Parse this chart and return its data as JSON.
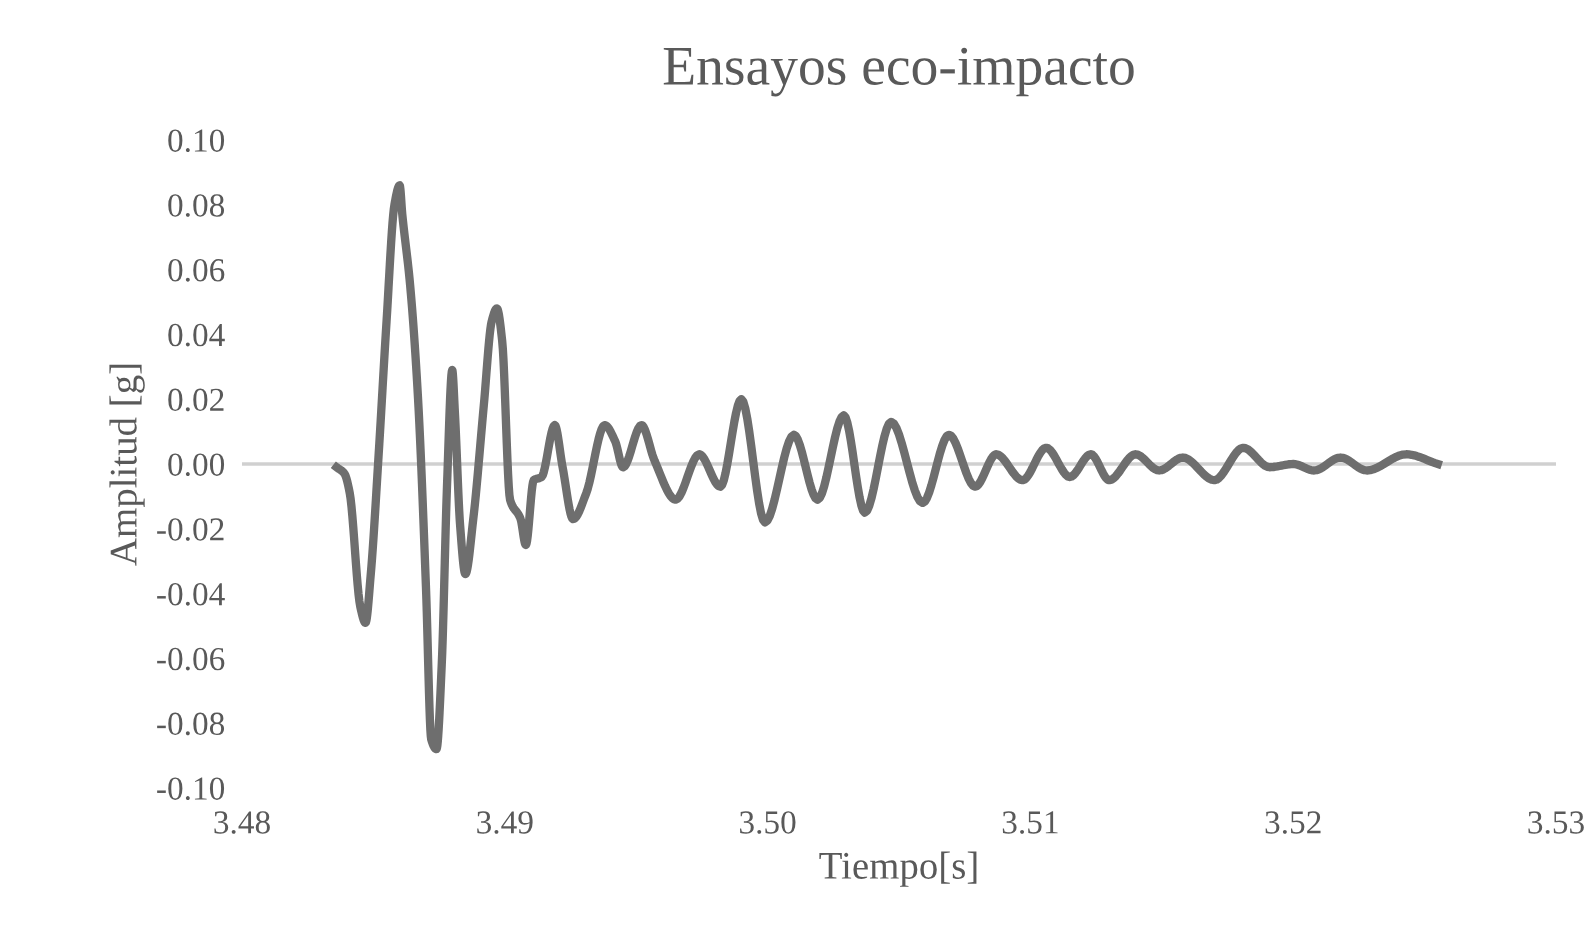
{
  "chart_data": {
    "type": "line",
    "title": "Ensayos eco-impacto",
    "xlabel": "Tiempo[s]",
    "ylabel": "Amplitud [g]",
    "xlim": [
      3.48,
      3.53
    ],
    "xticks": [
      {
        "value": 3.48,
        "label": "3.48"
      },
      {
        "value": 3.49,
        "label": "3.49"
      },
      {
        "value": 3.5,
        "label": "3.50"
      },
      {
        "value": 3.51,
        "label": "3.51"
      },
      {
        "value": 3.52,
        "label": "3.52"
      },
      {
        "value": 3.53,
        "label": "3.53"
      }
    ],
    "ylim": [
      -0.1,
      0.1
    ],
    "yticks": [
      {
        "value": -0.1,
        "label": "-0.10"
      },
      {
        "value": -0.08,
        "label": "-0.08"
      },
      {
        "value": -0.06,
        "label": "-0.06"
      },
      {
        "value": -0.04,
        "label": "-0.04"
      },
      {
        "value": -0.02,
        "label": "-0.02"
      },
      {
        "value": 0,
        "label": "0.00"
      },
      {
        "value": 0.02,
        "label": "0.02"
      },
      {
        "value": 0.04,
        "label": "0.04"
      },
      {
        "value": 0.06,
        "label": "0.06"
      },
      {
        "value": 0.08,
        "label": "0.08"
      },
      {
        "value": 0.1,
        "label": "0.10"
      }
    ],
    "grid": false,
    "marker": "none",
    "line_style": "solid",
    "ref_lines": [
      {
        "axis": "y",
        "value": 0,
        "label": null,
        "color": "#d0d0d0"
      }
    ],
    "series": [
      {
        "color": "#6e6e6e",
        "x": [
          3.4836,
          3.4839,
          3.4841,
          3.4845,
          3.4847,
          3.4849,
          3.4852,
          3.4855,
          3.4858,
          3.486,
          3.4861,
          3.4864,
          3.4867,
          3.487,
          3.4872,
          3.4874,
          3.4876,
          3.4878,
          3.488,
          3.4881,
          3.4883,
          3.4885,
          3.4888,
          3.4892,
          3.4895,
          3.4897,
          3.4899,
          3.4902,
          3.4906,
          3.4908,
          3.4911,
          3.4914,
          3.4919,
          3.4922,
          3.4926,
          3.4931,
          3.4938,
          3.4942,
          3.4945,
          3.4952,
          3.4957,
          3.4965,
          3.4974,
          3.4982,
          3.499,
          3.4999,
          3.501,
          3.5019,
          3.5029,
          3.5037,
          3.5047,
          3.5059,
          3.5069,
          3.5079,
          3.5087,
          3.5097,
          3.5106,
          3.5115,
          3.5123,
          3.513,
          3.514,
          3.5149,
          3.5158,
          3.517,
          3.5181,
          3.5191,
          3.52,
          3.5208,
          3.5218,
          3.5228,
          3.5243,
          3.5255
        ],
        "values": [
          -0.001,
          -0.003,
          -0.009,
          -0.044,
          -0.049,
          -0.034,
          0.003,
          0.044,
          0.08,
          0.086,
          0.077,
          0.055,
          0.02,
          -0.038,
          -0.085,
          -0.088,
          -0.062,
          -0.007,
          0.029,
          0.016,
          -0.019,
          -0.034,
          -0.017,
          0.018,
          0.044,
          0.048,
          0.038,
          -0.011,
          -0.017,
          -0.025,
          -0.005,
          -0.004,
          0.012,
          -0.001,
          -0.017,
          -0.009,
          0.012,
          0.007,
          -0.001,
          0.012,
          0.001,
          -0.011,
          0.003,
          -0.007,
          0.02,
          -0.018,
          0.009,
          -0.011,
          0.015,
          -0.015,
          0.013,
          -0.012,
          0.009,
          -0.007,
          0.003,
          -0.005,
          0.005,
          -0.004,
          0.003,
          -0.005,
          0.003,
          -0.002,
          0.002,
          -0.005,
          0.005,
          -0.001,
          0.0,
          -0.002,
          0.002,
          -0.002,
          0.003,
          0.0
        ]
      }
    ]
  }
}
